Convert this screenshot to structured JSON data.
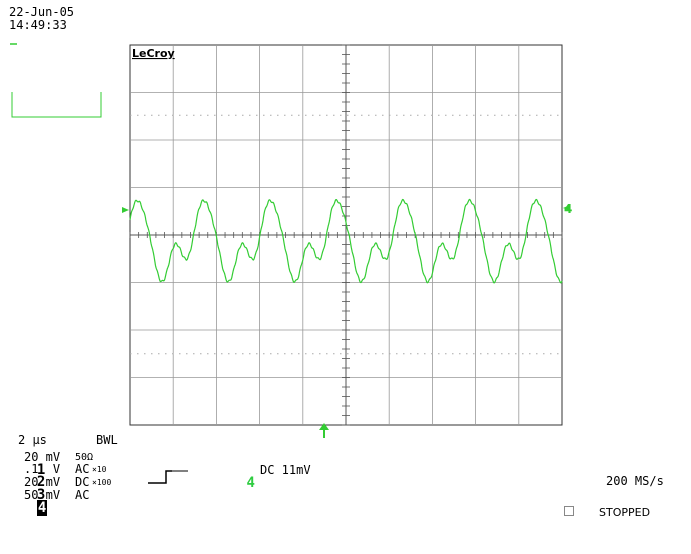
{
  "header": {
    "date": "22-Jun-05",
    "time": "14:49:33"
  },
  "brand": "LeCroy",
  "colors": {
    "trace": "#33cc33",
    "grid": "#999999",
    "dots": "#aaaaaa"
  },
  "timebase": {
    "value": "2 µs",
    "bwl": "BWL"
  },
  "channels": [
    {
      "num": "1",
      "scale": "20 mV",
      "coupling": "50Ω",
      "probe": ""
    },
    {
      "num": "2",
      "scale": ".1  V",
      "coupling": "AC",
      "probe": "×10"
    },
    {
      "num": "3",
      "scale": "20 mV",
      "coupling": "DC",
      "probe": "×100"
    },
    {
      "num": "4",
      "scale": "50 mV",
      "coupling": "AC",
      "probe": ""
    }
  ],
  "trigger": {
    "channel": "4",
    "info": "DC 11mV"
  },
  "sample_rate": "200 MS/s",
  "status": "STOPPED",
  "channel_marker": "4",
  "waveform": {
    "cycles": 6.5,
    "amplitude_divisions": 1.6
  }
}
